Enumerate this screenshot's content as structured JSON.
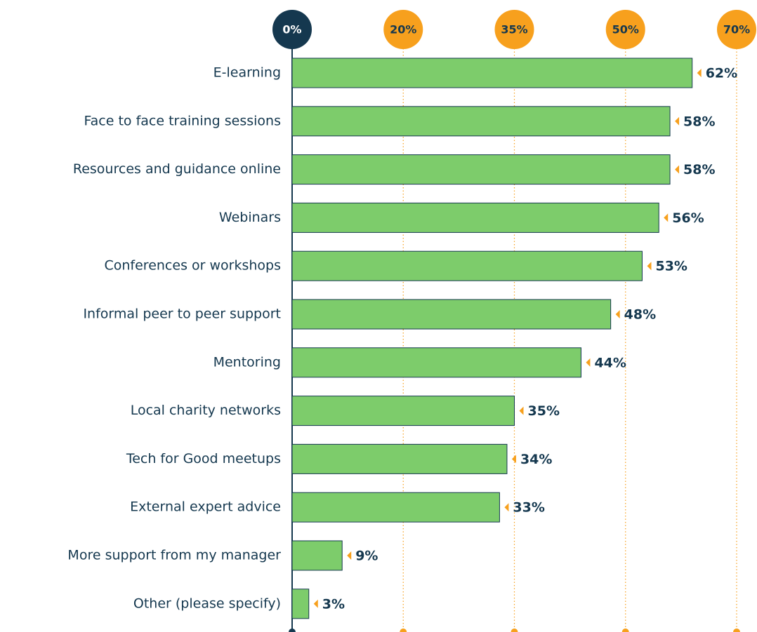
{
  "chart_data": {
    "type": "bar",
    "orientation": "horizontal",
    "categories": [
      "E-learning",
      "Face to face training sessions",
      "Resources and guidance online",
      "Webinars",
      "Conferences or workshops",
      "Informal peer to peer support",
      "Mentoring",
      "Local charity networks",
      "Tech for Good meetups",
      "External expert advice",
      "More support from my manager",
      "Other (please specify)"
    ],
    "values": [
      62,
      58,
      58,
      56,
      53,
      48,
      44,
      35,
      34,
      33,
      9,
      3
    ],
    "value_labels": [
      "62%",
      "58%",
      "58%",
      "56%",
      "53%",
      "48%",
      "44%",
      "35%",
      "34%",
      "33%",
      "9%",
      "3%"
    ],
    "color": "#7dcc6b",
    "xlim": [
      0,
      70
    ],
    "xticks": [
      {
        "value": 0,
        "label": "0%"
      },
      {
        "value": 20,
        "label": "20%"
      },
      {
        "value": 35,
        "label": "35%"
      },
      {
        "value": 50,
        "label": "50%"
      },
      {
        "value": 70,
        "label": "70%"
      }
    ],
    "grid": true
  }
}
